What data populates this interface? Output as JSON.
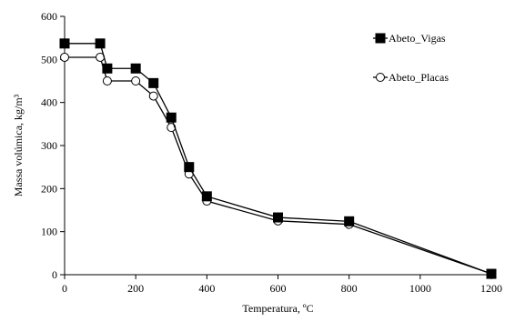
{
  "chart_data": {
    "type": "line",
    "title": "",
    "xlabel": "Temperatura, ºC",
    "ylabel": "Massa volúmica, kg/m³",
    "xlim": [
      0,
      1200
    ],
    "ylim": [
      0,
      600
    ],
    "xticks": [
      0,
      200,
      400,
      600,
      800,
      1000,
      1200
    ],
    "yticks": [
      0,
      100,
      200,
      300,
      400,
      500,
      600
    ],
    "grid": false,
    "legend_position": "top-right",
    "series": [
      {
        "name": "Abeto_Vigas",
        "marker": "filled-square",
        "color": "#000000",
        "x": [
          0,
          100,
          120,
          200,
          250,
          300,
          350,
          400,
          600,
          800,
          1200
        ],
        "y": [
          537,
          537,
          479,
          479,
          445,
          365,
          250,
          182,
          133,
          124,
          2
        ]
      },
      {
        "name": "Abeto_Placas",
        "marker": "open-circle",
        "color": "#000000",
        "x": [
          0,
          100,
          120,
          200,
          250,
          300,
          350,
          400,
          600,
          800,
          1200
        ],
        "y": [
          505,
          505,
          450,
          450,
          415,
          342,
          234,
          171,
          125,
          117,
          2
        ]
      }
    ]
  }
}
